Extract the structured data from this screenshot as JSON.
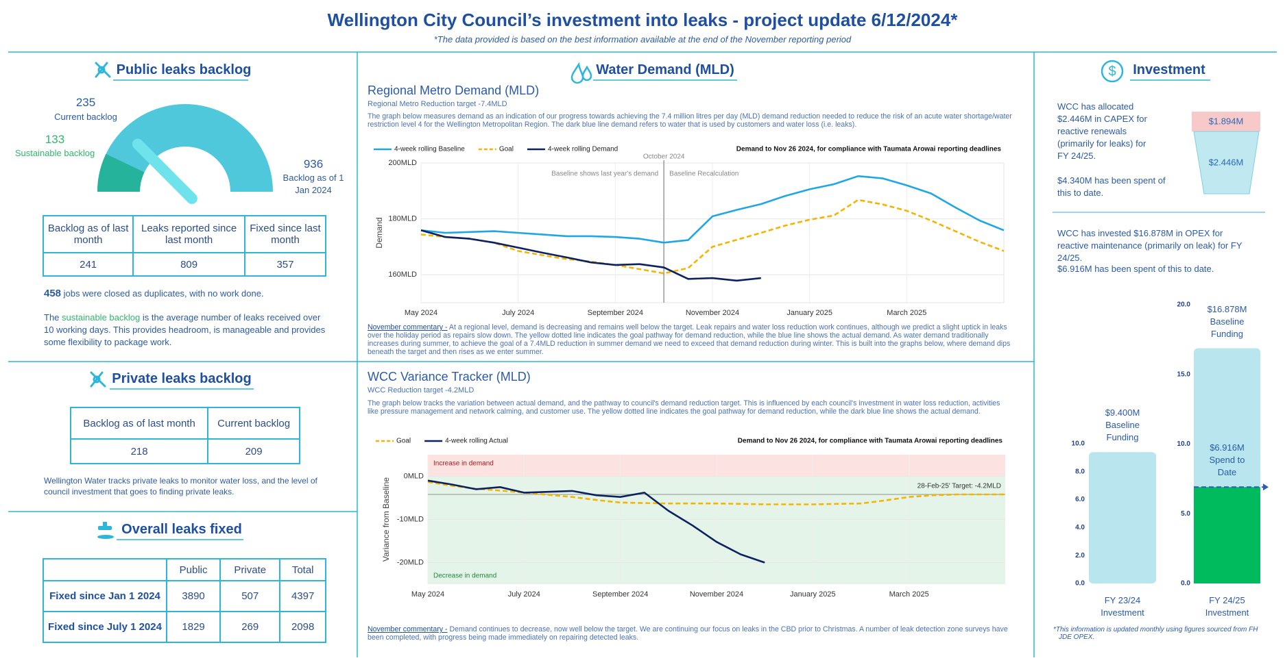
{
  "header": {
    "title": "Wellington City Council’s investment into leaks - project update 6/12/2024*",
    "subtitle": "*The data provided is based on the best information available at the end of the November reporting period"
  },
  "public_backlog": {
    "title": "Public leaks backlog",
    "current": 235,
    "current_label": "Current backlog",
    "sustainable": 133,
    "sustainable_label": "Sustainable backlog",
    "jan_backlog": 936,
    "jan_label": "Backlog as of 1 Jan 2024",
    "table": {
      "headers": [
        "Backlog as of last month",
        "Leaks reported since last month",
        "Fixed since last month"
      ],
      "values": [
        241,
        809,
        357
      ]
    },
    "duplicates": 458,
    "duplicates_text": "jobs were closed as duplicates, with no work done.",
    "note_start": "The",
    "note_term": "sustainable backlog",
    "note_end": "is the average number of leaks received over 10 working days. This provides headroom, is manageable and provides some flexibility to package work."
  },
  "private_backlog": {
    "title": "Private leaks backlog",
    "table": {
      "headers": [
        "Backlog as of last month",
        "Current backlog"
      ],
      "values": [
        218,
        209
      ]
    },
    "note": "Wellington Water tracks private leaks to monitor water loss, and the level of council investment that goes to finding private leaks."
  },
  "overall": {
    "title": "Overall leaks fixed",
    "headers": [
      "Public",
      "Private",
      "Total"
    ],
    "rows": [
      {
        "label": "Fixed since Jan 1 2024",
        "values": [
          3890,
          507,
          4397
        ]
      },
      {
        "label": "Fixed since July 1 2024",
        "values": [
          1829,
          269,
          2098
        ]
      }
    ]
  },
  "water_demand": {
    "title": "Water Demand (MLD)"
  },
  "investment": {
    "title": "Investment",
    "capex_text": "WCC has allocated $2.446M in CAPEX for reactive renewals (primarily for leaks) for FY 24/25.",
    "capex_spent": "$4.340M has been spent of this to date.",
    "cup_top": "$1.894M",
    "cup_bottom": "$2.446M",
    "opex_text": "WCC has invested $16.878M in OPEX for reactive maintenance (primarily on leak) for FY 24/25.",
    "opex_spent": "$6.916M has been spent of this to date.",
    "footnote": "*This information is updated monthly using figures sourced from FH JDE OPEX."
  },
  "chart_data": [
    {
      "type": "line",
      "title": "Regional Metro Demand (MLD)",
      "subtitle": "Regional Metro Reduction target -7.4MLD",
      "description": "The graph below measures demand as an indication of our progress towards achieving the 7.4 million litres per day (MLD) demand reduction needed to reduce the risk of an acute water shortage/water restriction level 4 for the Wellington Metropolitan Region. The dark blue line demand refers to water that is used by customers and water loss (i.e. leaks).",
      "y_label": "Demand",
      "note": "Demand to Nov 26 2024, for compliance with Taumata Arowai reporting deadlines",
      "vline": 5,
      "vline_label": "October 2024",
      "vline_left_label": "Baseline shows last year's demand",
      "vline_right_label": "Baseline Recalculation",
      "commentary_label": "November commentary -",
      "commentary": "At a regional level, demand is decreasing and remains well below the target. Leak repairs and water loss reduction work continues, although we predict a slight uptick in leaks over the holiday period as repairs slow down. The yellow dotted line indicates the goal pathway for demand reduction, while the blue line shows the actual demand. As water demand traditionally increases during summer, to achieve the goal of a 7.4MLD reduction in summer demand we need to exceed that demand reduction during winter. This is built into the graphs below, where demand dips beneath the target and then rises as we enter summer.",
      "x": [
        0,
        0.5,
        1,
        1.5,
        2,
        2.5,
        3,
        3.5,
        4,
        4.5,
        5,
        5.5,
        6,
        6.5,
        7,
        7.5,
        8,
        8.5,
        9,
        9.5,
        10,
        10.5,
        11,
        11.5,
        12
      ],
      "xlim": [
        0,
        12
      ],
      "xticks": [
        {
          "value": 0,
          "label": "May 2024"
        },
        {
          "value": 2,
          "label": "July 2024"
        },
        {
          "value": 4,
          "label": "September 2024"
        },
        {
          "value": 6,
          "label": "November 2024"
        },
        {
          "value": 8,
          "label": "January 2025"
        },
        {
          "value": 10,
          "label": "March 2025"
        }
      ],
      "ylim": [
        150,
        200
      ],
      "yticks": [
        {
          "value": 160,
          "label": "160MLD"
        },
        {
          "value": 180,
          "label": "180MLD"
        },
        {
          "value": 200,
          "label": "200MLD"
        }
      ],
      "grid": true,
      "series": [
        {
          "name": "4-week rolling Baseline",
          "color": "#1ea7e4",
          "values": [
            175.9,
            175,
            175.3,
            175.6,
            175,
            174.4,
            173.8,
            173.8,
            173.5,
            172.9,
            171.5,
            172.4,
            180.9,
            183.2,
            185.3,
            188.2,
            190.6,
            192.4,
            195.3,
            194.5,
            192,
            189.1,
            184.1,
            179.4,
            175.9
          ]
        },
        {
          "name": "Goal",
          "color": "#f5b400",
          "dashed": true,
          "values": [
            174.4,
            173.5,
            172.9,
            171.5,
            168.5,
            167,
            165.6,
            164.7,
            163.5,
            162,
            160.5,
            162.4,
            170,
            172.5,
            175,
            177.6,
            179.7,
            181.2,
            186.8,
            185.2,
            182.9,
            179.4,
            175.6,
            171.8,
            168.5
          ]
        },
        {
          "name": "4-week rolling Demand",
          "color": "#0b2161",
          "values": [
            175.9,
            173.5,
            172.9,
            171.5,
            169.7,
            167.9,
            166.2,
            164.4,
            163.5,
            163.8,
            162.6,
            158.5,
            158.8,
            157.9,
            158.8,
            null,
            null,
            null,
            null,
            null,
            null,
            null,
            null,
            null,
            null
          ]
        }
      ]
    },
    {
      "type": "line",
      "title": "WCC Variance Tracker (MLD)",
      "subtitle": "WCC Reduction target -4.2MLD",
      "description": "The graph below tracks the variation between actual demand, and the pathway to council's demand reduction target. This is influenced by each council's investment in water loss reduction, activities like pressure management and network calming, and customer use. The yellow dotted line indicates the goal pathway for demand reduction, while the dark blue line shows the actual demand.",
      "y_label": "Variance from Baseline",
      "note": "Demand to Nov 26 2024, for compliance with Taumata Arowai reporting deadlines",
      "increase_label": "Increase in demand",
      "decrease_label": "Decrease in demand",
      "target": -4.2,
      "target_label": "28-Feb-25' Target: -4.2MLD",
      "commentary_label": "November commentary -",
      "commentary": "Demand continues to decrease, now well below the target. We are continuing our focus on leaks in the CBD prior to Christmas. A number of leak detection zone surveys have been completed, with progress being made immediately on repairing detected leaks.",
      "x": [
        0,
        0.5,
        1,
        1.5,
        2,
        2.5,
        3,
        3.5,
        4,
        4.5,
        5,
        5.5,
        6,
        6.5,
        7,
        7.5,
        8,
        8.5,
        9,
        9.5,
        10,
        10.5,
        11,
        11.5,
        12
      ],
      "xlim": [
        0,
        12
      ],
      "xticks": [
        {
          "value": 0,
          "label": "May 2024"
        },
        {
          "value": 2,
          "label": "July 2024"
        },
        {
          "value": 4,
          "label": "September 2024"
        },
        {
          "value": 6,
          "label": "November 2024"
        },
        {
          "value": 8,
          "label": "January 2025"
        },
        {
          "value": 10,
          "label": "March 2025"
        }
      ],
      "ylim": [
        -25,
        5
      ],
      "yticks": [
        {
          "value": -20,
          "label": "-20MLD"
        },
        {
          "value": -10,
          "label": "-10MLD"
        },
        {
          "value": 0,
          "label": "0MLD"
        }
      ],
      "grid": true,
      "series": [
        {
          "name": "Goal",
          "color": "#f5b400",
          "dashed": true,
          "values": [
            -1.3,
            -2.2,
            -2.9,
            -3.3,
            -3.8,
            -4.3,
            -4.8,
            -5.5,
            -6.1,
            -6.2,
            -6.3,
            -6.3,
            -6.3,
            -6.4,
            -6.5,
            -6.5,
            -6.5,
            -6.4,
            -6.3,
            -5.6,
            -4.8,
            -4.4,
            -4.2,
            -4.2,
            -4.2
          ]
        },
        {
          "name": "4-week rolling Actual",
          "color": "#0b2161",
          "values": [
            -1,
            -1.9,
            -3,
            -2.5,
            -3.8,
            -3.6,
            -3.4,
            -4.4,
            -4.8,
            -3.8,
            -8,
            -11.4,
            -15.2,
            -18.1,
            -20,
            null,
            null,
            null,
            null,
            null,
            null,
            null,
            null,
            null,
            null
          ]
        }
      ]
    },
    {
      "type": "bar",
      "categories": [
        "FY 23/24 Investment"
      ],
      "ylim": [
        0,
        10
      ],
      "yticks": [
        {
          "value": 0,
          "label": "0.0"
        },
        {
          "value": 2,
          "label": "2.0"
        },
        {
          "value": 4,
          "label": "4.0"
        },
        {
          "value": 6,
          "label": "6.0"
        },
        {
          "value": 8,
          "label": "8.0"
        },
        {
          "value": 10,
          "label": "10.0"
        }
      ],
      "series": [
        {
          "name": "Baseline Funding",
          "color": "#b9e5ef",
          "values": [
            9.4
          ],
          "value_labels": [
            "$9.400M"
          ]
        }
      ]
    },
    {
      "type": "bar",
      "categories": [
        "FY 24/25 Investment"
      ],
      "ylim": [
        0,
        20
      ],
      "yticks": [
        {
          "value": 0,
          "label": "0.0"
        },
        {
          "value": 5,
          "label": "5.0"
        },
        {
          "value": 10,
          "label": "10.0"
        },
        {
          "value": 15,
          "label": "15.0"
        },
        {
          "value": 20,
          "label": "20.0"
        }
      ],
      "series": [
        {
          "name": "Baseline Funding",
          "color": "#b9e5ef",
          "values": [
            16.878
          ],
          "value_labels": [
            "$16.878M"
          ]
        },
        {
          "name": "Spend to Date",
          "color": "#00bb5e",
          "values": [
            6.916
          ],
          "value_labels": [
            "$6.916M"
          ],
          "dashed_marker": true
        }
      ]
    }
  ]
}
